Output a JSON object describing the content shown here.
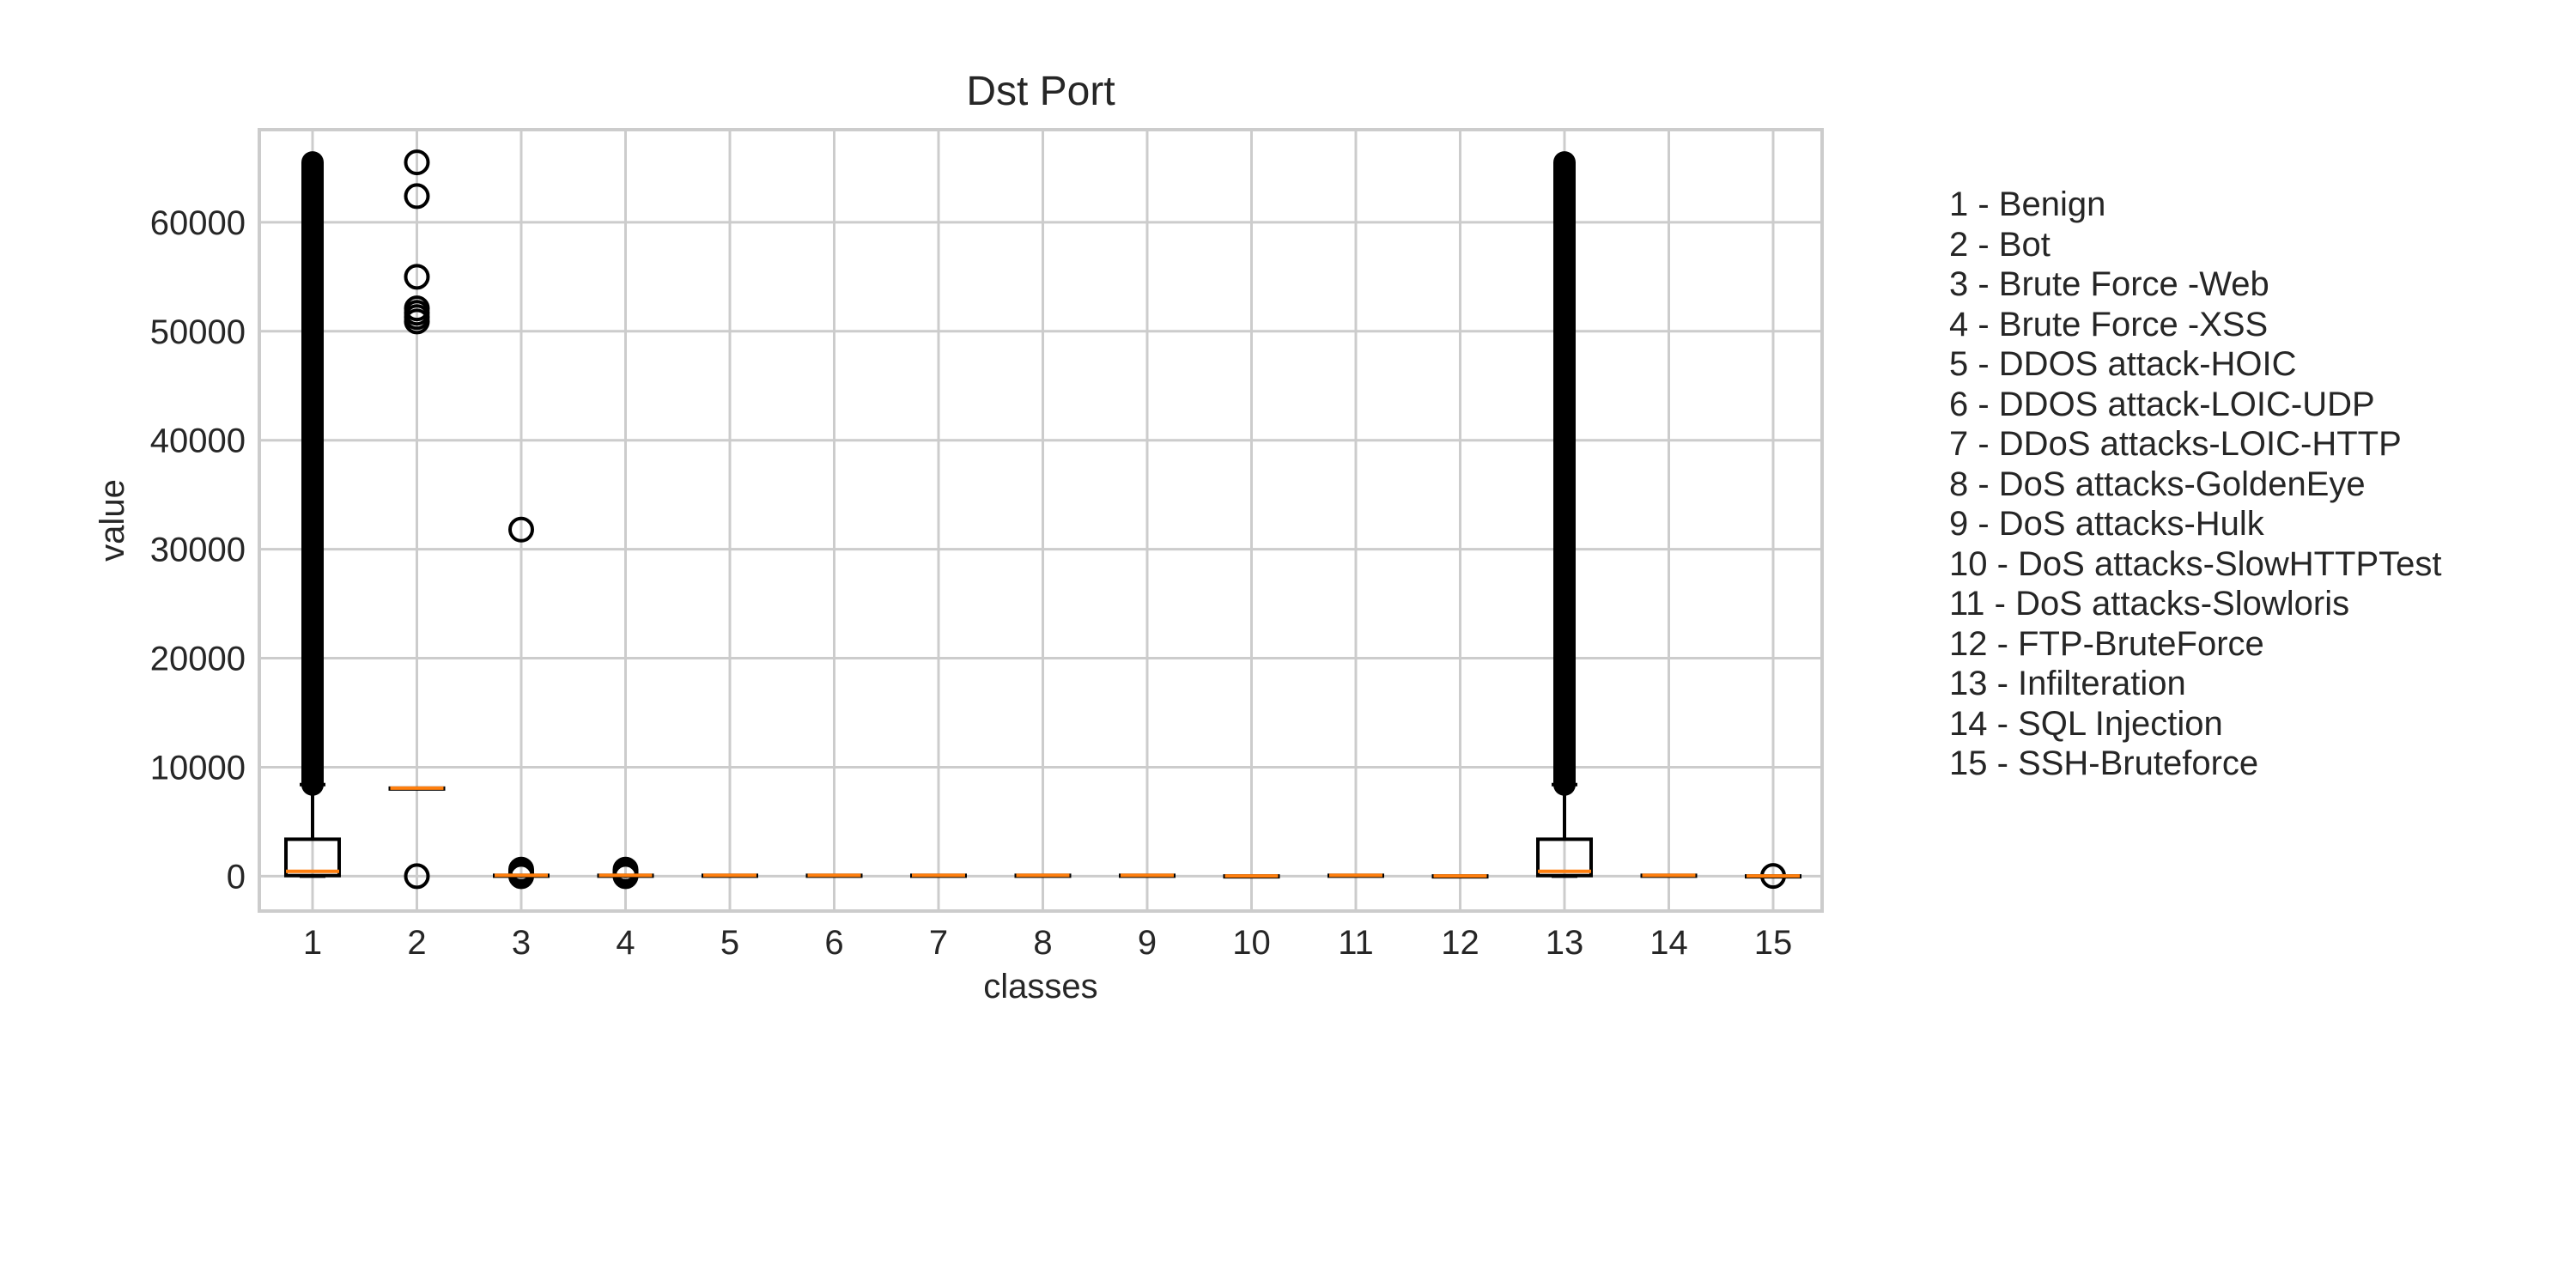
{
  "chart_data": {
    "type": "box",
    "title": "Dst Port",
    "xlabel": "classes",
    "ylabel": "value",
    "ylim": [
      -3200,
      68500
    ],
    "yticks": [
      0,
      10000,
      20000,
      30000,
      40000,
      50000,
      60000
    ],
    "categories": [
      "1",
      "2",
      "3",
      "4",
      "5",
      "6",
      "7",
      "8",
      "9",
      "10",
      "11",
      "12",
      "13",
      "14",
      "15"
    ],
    "grid": true,
    "boxes": [
      {
        "label": "1",
        "q1": 53,
        "median": 443,
        "q3": 3389,
        "whisker_low": 0,
        "whisker_high": 8400,
        "fliers": [
          {
            "from": 8400,
            "to": 65500
          }
        ]
      },
      {
        "label": "2",
        "q1": 8080,
        "median": 8080,
        "q3": 8080,
        "whisker_low": 8080,
        "whisker_high": 8080,
        "fliers": [
          0,
          50900,
          51300,
          51700,
          52100,
          55000,
          62400,
          65500
        ]
      },
      {
        "label": "3",
        "q1": 80,
        "median": 80,
        "q3": 80,
        "whisker_low": 80,
        "whisker_high": 80,
        "fliers": [
          0,
          150,
          300,
          450,
          600,
          31800
        ]
      },
      {
        "label": "4",
        "q1": 80,
        "median": 80,
        "q3": 80,
        "whisker_low": 80,
        "whisker_high": 80,
        "fliers": [
          0,
          200,
          400,
          600
        ]
      },
      {
        "label": "5",
        "q1": 80,
        "median": 80,
        "q3": 80,
        "whisker_low": 80,
        "whisker_high": 80,
        "fliers": []
      },
      {
        "label": "6",
        "q1": 80,
        "median": 80,
        "q3": 80,
        "whisker_low": 80,
        "whisker_high": 80,
        "fliers": []
      },
      {
        "label": "7",
        "q1": 80,
        "median": 80,
        "q3": 80,
        "whisker_low": 80,
        "whisker_high": 80,
        "fliers": []
      },
      {
        "label": "8",
        "q1": 80,
        "median": 80,
        "q3": 80,
        "whisker_low": 80,
        "whisker_high": 80,
        "fliers": []
      },
      {
        "label": "9",
        "q1": 80,
        "median": 80,
        "q3": 80,
        "whisker_low": 80,
        "whisker_high": 80,
        "fliers": []
      },
      {
        "label": "10",
        "q1": 21,
        "median": 21,
        "q3": 21,
        "whisker_low": 21,
        "whisker_high": 21,
        "fliers": []
      },
      {
        "label": "11",
        "q1": 80,
        "median": 80,
        "q3": 80,
        "whisker_low": 80,
        "whisker_high": 80,
        "fliers": []
      },
      {
        "label": "12",
        "q1": 21,
        "median": 21,
        "q3": 21,
        "whisker_low": 21,
        "whisker_high": 21,
        "fliers": []
      },
      {
        "label": "13",
        "q1": 53,
        "median": 443,
        "q3": 3389,
        "whisker_low": 0,
        "whisker_high": 8400,
        "fliers": [
          {
            "from": 8400,
            "to": 65500
          }
        ]
      },
      {
        "label": "14",
        "q1": 80,
        "median": 80,
        "q3": 80,
        "whisker_low": 80,
        "whisker_high": 80,
        "fliers": []
      },
      {
        "label": "15",
        "q1": 22,
        "median": 22,
        "q3": 22,
        "whisker_low": 22,
        "whisker_high": 22,
        "fliers": [
          22
        ]
      }
    ],
    "colors": {
      "box": "#000000",
      "median": "#ff7f0e",
      "grid": "#cccccc",
      "axes": "#cccccc",
      "text": "#262626"
    }
  },
  "legend": {
    "items": [
      "1 - Benign",
      "2 - Bot",
      "3 - Brute Force -Web",
      "4 - Brute Force -XSS",
      "5 - DDOS attack-HOIC",
      "6 - DDOS attack-LOIC-UDP",
      "7 - DDoS attacks-LOIC-HTTP",
      "8 - DoS attacks-GoldenEye",
      "9 - DoS attacks-Hulk",
      "10 - DoS attacks-SlowHTTPTest",
      "11 - DoS attacks-Slowloris",
      "12 - FTP-BruteForce",
      "13 - Infilteration",
      "14 - SQL Injection",
      "15 - SSH-Bruteforce"
    ]
  }
}
